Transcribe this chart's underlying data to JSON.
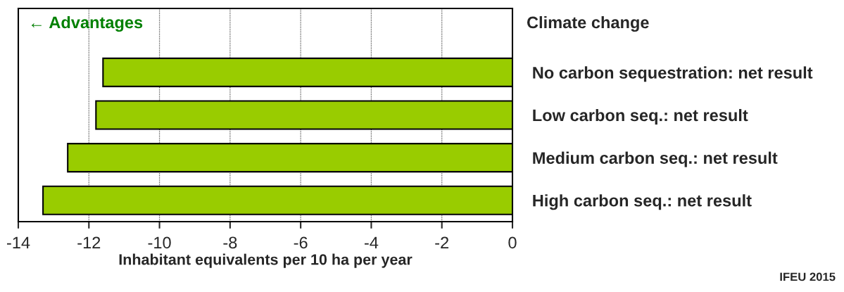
{
  "chart_data": {
    "type": "bar",
    "orientation": "horizontal",
    "title": "Climate change",
    "categories": [
      "No carbon sequestration: net result",
      "Low carbon seq.: net result",
      "Medium carbon seq.: net result",
      "High carbon seq.: net result"
    ],
    "values": [
      -11.6,
      -11.8,
      -12.6,
      -13.3
    ],
    "color": "#99cc00",
    "xlim": [
      -14,
      0
    ],
    "xticks": [
      -14,
      -12,
      -10,
      -8,
      -6,
      -4,
      -2,
      0
    ],
    "xlabel": "Inhabitant equivalents per 10 ha per year",
    "annotations": [
      "← Advantages",
      "IFEU 2015"
    ],
    "grid": "x",
    "legend": false
  }
}
